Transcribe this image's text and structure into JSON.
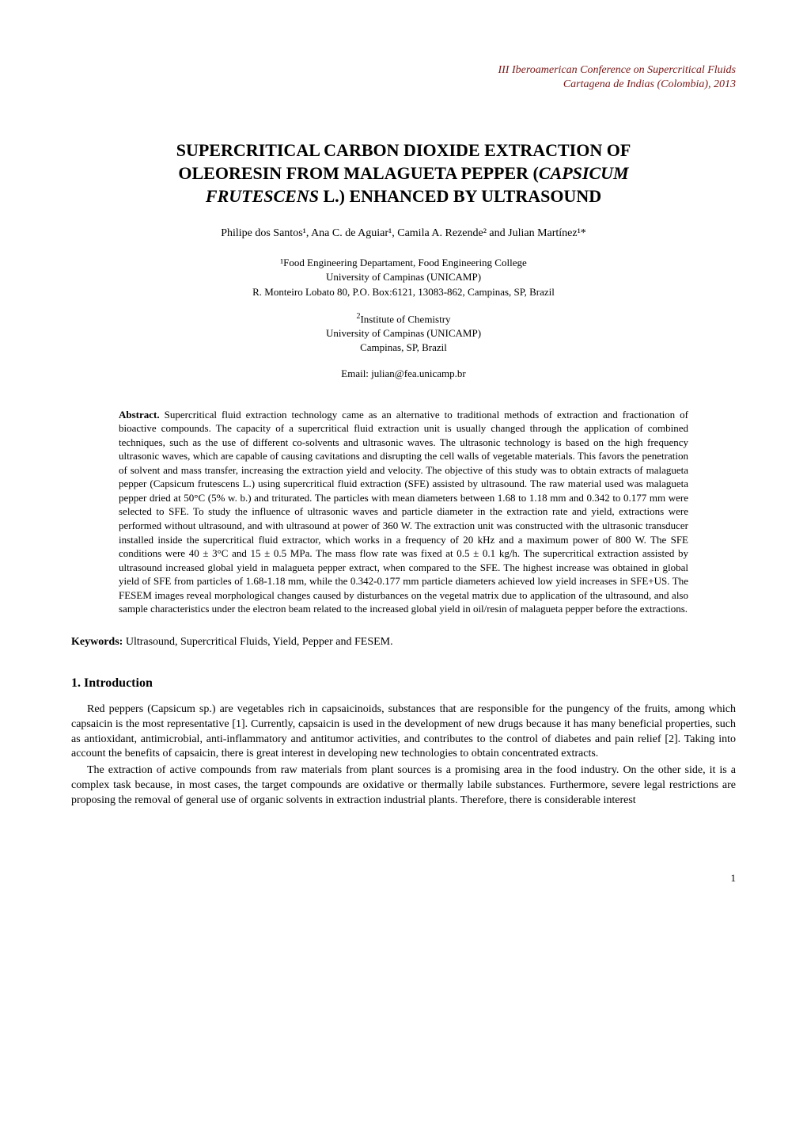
{
  "header": {
    "line1": "III Iberoamerican Conference on Supercritical Fluids",
    "line2": "Cartagena de Indias (Colombia), 2013",
    "color": "#7a1818"
  },
  "title": {
    "line1": "SUPERCRITICAL CARBON DIOXIDE EXTRACTION OF",
    "line2_prefix": "OLEORESIN FROM MALAGUETA PEPPER (",
    "line2_italic": "CAPSICUM",
    "line3_italic": "FRUTESCENS",
    "line3_suffix": " L.) ENHANCED BY ULTRASOUND"
  },
  "authors": "Philipe dos Santos¹, Ana C. de Aguiar¹, Camila A. Rezende² and Julian Martínez¹*",
  "affiliation1": {
    "line1": "¹Food Engineering Departament, Food Engineering College",
    "line2": "University of Campinas (UNICAMP)",
    "line3": "R. Monteiro Lobato 80, P.O. Box:6121, 13083-862, Campinas, SP, Brazil"
  },
  "affiliation2": {
    "line1_sup": "2",
    "line1": "Institute of Chemistry",
    "line2": "University of Campinas (UNICAMP)",
    "line3": "Campinas, SP, Brazil"
  },
  "email": "Email: julian@fea.unicamp.br",
  "abstract": {
    "label": "Abstract.",
    "text": " Supercritical fluid extraction technology came as an alternative to traditional methods of extraction and fractionation of bioactive compounds. The capacity of a supercritical fluid extraction unit is usually changed through the application of combined techniques, such as the use of different co-solvents and ultrasonic waves. The ultrasonic technology is based on the high frequency ultrasonic waves, which are capable of causing cavitations and disrupting the cell walls of vegetable materials. This favors the penetration of solvent and mass transfer, increasing the extraction yield and velocity. The objective of this study was to obtain extracts of malagueta pepper (Capsicum frutescens L.) using supercritical fluid extraction (SFE) assisted by ultrasound. The raw material used was malagueta pepper dried at 50°C (5% w. b.) and triturated. The particles with mean diameters between 1.68 to 1.18 mm and 0.342 to 0.177 mm were selected to SFE. To study the influence of ultrasonic waves and particle diameter in the extraction rate and yield, extractions were performed without ultrasound, and with ultrasound at power of 360 W. The extraction unit was constructed with the ultrasonic transducer installed inside the supercritical fluid extractor, which works in a frequency of 20 kHz and a maximum power of 800 W. The SFE conditions were 40 ± 3°C and 15 ± 0.5 MPa. The mass flow rate was fixed at 0.5 ± 0.1 kg/h.  The supercritical extraction assisted by ultrasound increased global yield in malagueta pepper extract, when compared to the SFE. The highest increase was obtained in global yield of SFE from particles of 1.68-1.18 mm, while the 0.342-0.177 mm particle diameters achieved low yield increases in SFE+US. The FESEM images reveal morphological changes caused by disturbances on the vegetal matrix due to application of the ultrasound, and also sample characteristics under the electron beam related to the increased global yield in oil/resin of malagueta pepper before the extractions."
  },
  "keywords": {
    "label": "Keywords:",
    "text": " Ultrasound, Supercritical Fluids, Yield, Pepper and FESEM."
  },
  "section1": {
    "heading": "1.  Introduction",
    "para1": "Red peppers (Capsicum sp.) are vegetables rich in capsaicinoids, substances that are responsible for the pungency of the fruits, among which capsaicin is the most representative [1]. Currently, capsaicin is used in the development of new drugs because it has many beneficial properties, such as antioxidant, antimicrobial, anti-inflammatory and antitumor activities, and contributes to the control of diabetes and pain relief [2]. Taking into account the benefits of capsaicin, there is great interest in developing new technologies to obtain concentrated extracts.",
    "para2": "The extraction of active compounds from raw materials from plant sources is a promising area in the food industry. On the other side, it is a complex task because, in most cases, the target compounds are oxidative or thermally labile substances. Furthermore, severe legal restrictions are proposing the removal of general use of organic solvents in extraction industrial plants. Therefore, there is considerable interest"
  },
  "pageNumber": "1",
  "styling": {
    "background": "#ffffff",
    "text_color": "#000000",
    "header_color": "#7a1818",
    "body_font_size": 14,
    "abstract_font_size": 13,
    "title_font_size": 22
  }
}
